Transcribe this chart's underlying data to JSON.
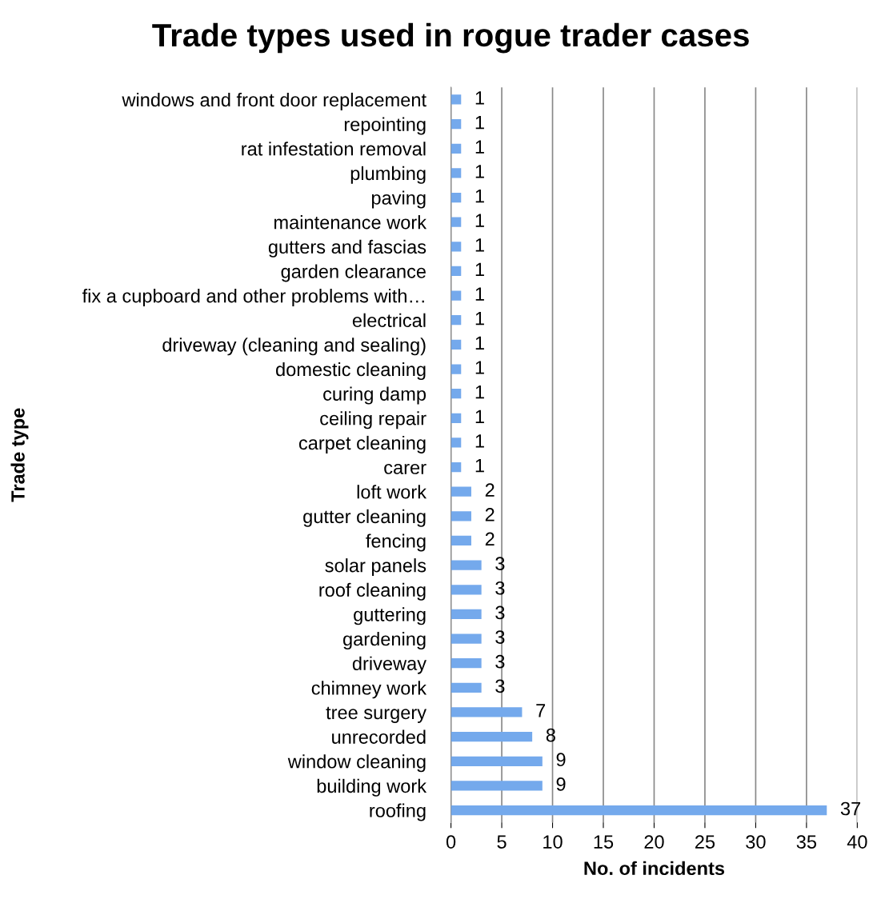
{
  "chart_data": {
    "type": "bar",
    "orientation": "horizontal",
    "title": "Trade types used in rogue trader cases",
    "xlabel": "No. of incidents",
    "ylabel": "Trade type",
    "categories": [
      "windows and front door replacement",
      "repointing",
      "rat infestation removal",
      "plumbing",
      "paving",
      "maintenance work",
      "gutters and fascias",
      "garden clearance",
      "fix a cupboard and other problems with…",
      "electrical",
      "driveway (cleaning and sealing)",
      "domestic cleaning",
      "curing damp",
      "ceiling repair",
      "carpet cleaning",
      "carer",
      "loft work",
      "gutter cleaning",
      "fencing",
      "solar panels",
      "roof cleaning",
      "guttering",
      "gardening",
      "driveway",
      "chimney work",
      "tree surgery",
      "unrecorded",
      "window cleaning",
      "building work",
      "roofing"
    ],
    "values": [
      1,
      1,
      1,
      1,
      1,
      1,
      1,
      1,
      1,
      1,
      1,
      1,
      1,
      1,
      1,
      1,
      2,
      2,
      2,
      3,
      3,
      3,
      3,
      3,
      3,
      7,
      8,
      9,
      9,
      37
    ],
    "color": "#74a9ec",
    "xlim": [
      0,
      40
    ],
    "xticks": [
      0,
      5,
      10,
      15,
      20,
      25,
      30,
      35,
      40
    ],
    "grid": "x",
    "data_labels": true,
    "legend": false
  }
}
